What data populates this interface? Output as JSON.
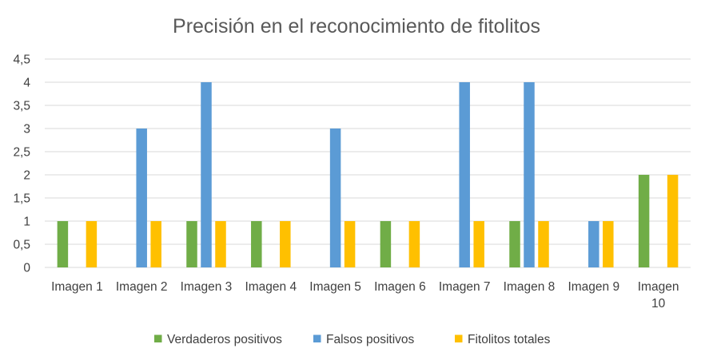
{
  "chart_data": {
    "type": "bar",
    "title": "Precisión en el reconocimiento de fitolitos",
    "xlabel": "",
    "ylabel": "",
    "categories": [
      [
        "Imagen 1"
      ],
      [
        "Imagen 2"
      ],
      [
        "Imagen 3"
      ],
      [
        "Imagen 4"
      ],
      [
        "Imagen 5"
      ],
      [
        "Imagen 6"
      ],
      [
        "Imagen 7"
      ],
      [
        "Imagen 8"
      ],
      [
        "Imagen 9"
      ],
      [
        "Imagen",
        "10"
      ]
    ],
    "series": [
      {
        "name": "Verdaderos positivos",
        "color": "#70ad47",
        "values": [
          1,
          0,
          1,
          1,
          0,
          1,
          0,
          1,
          0,
          2
        ]
      },
      {
        "name": "Falsos positivos",
        "color": "#5b9bd5",
        "values": [
          0,
          3,
          4,
          0,
          3,
          0,
          4,
          4,
          1,
          0
        ]
      },
      {
        "name": "Fitolitos totales",
        "color": "#ffc000",
        "values": [
          1,
          1,
          1,
          1,
          1,
          1,
          1,
          1,
          1,
          2
        ]
      }
    ],
    "ylim": [
      0,
      4.5
    ],
    "yticks": [
      "0",
      "0,5",
      "1",
      "1,5",
      "2",
      "2,5",
      "3",
      "3,5",
      "4",
      "4,5"
    ],
    "ytick_values": [
      0,
      0.5,
      1,
      1.5,
      2,
      2.5,
      3,
      3.5,
      4,
      4.5
    ],
    "grid": true,
    "legend_position": "bottom",
    "gridline_color": "#d9d9d9"
  }
}
